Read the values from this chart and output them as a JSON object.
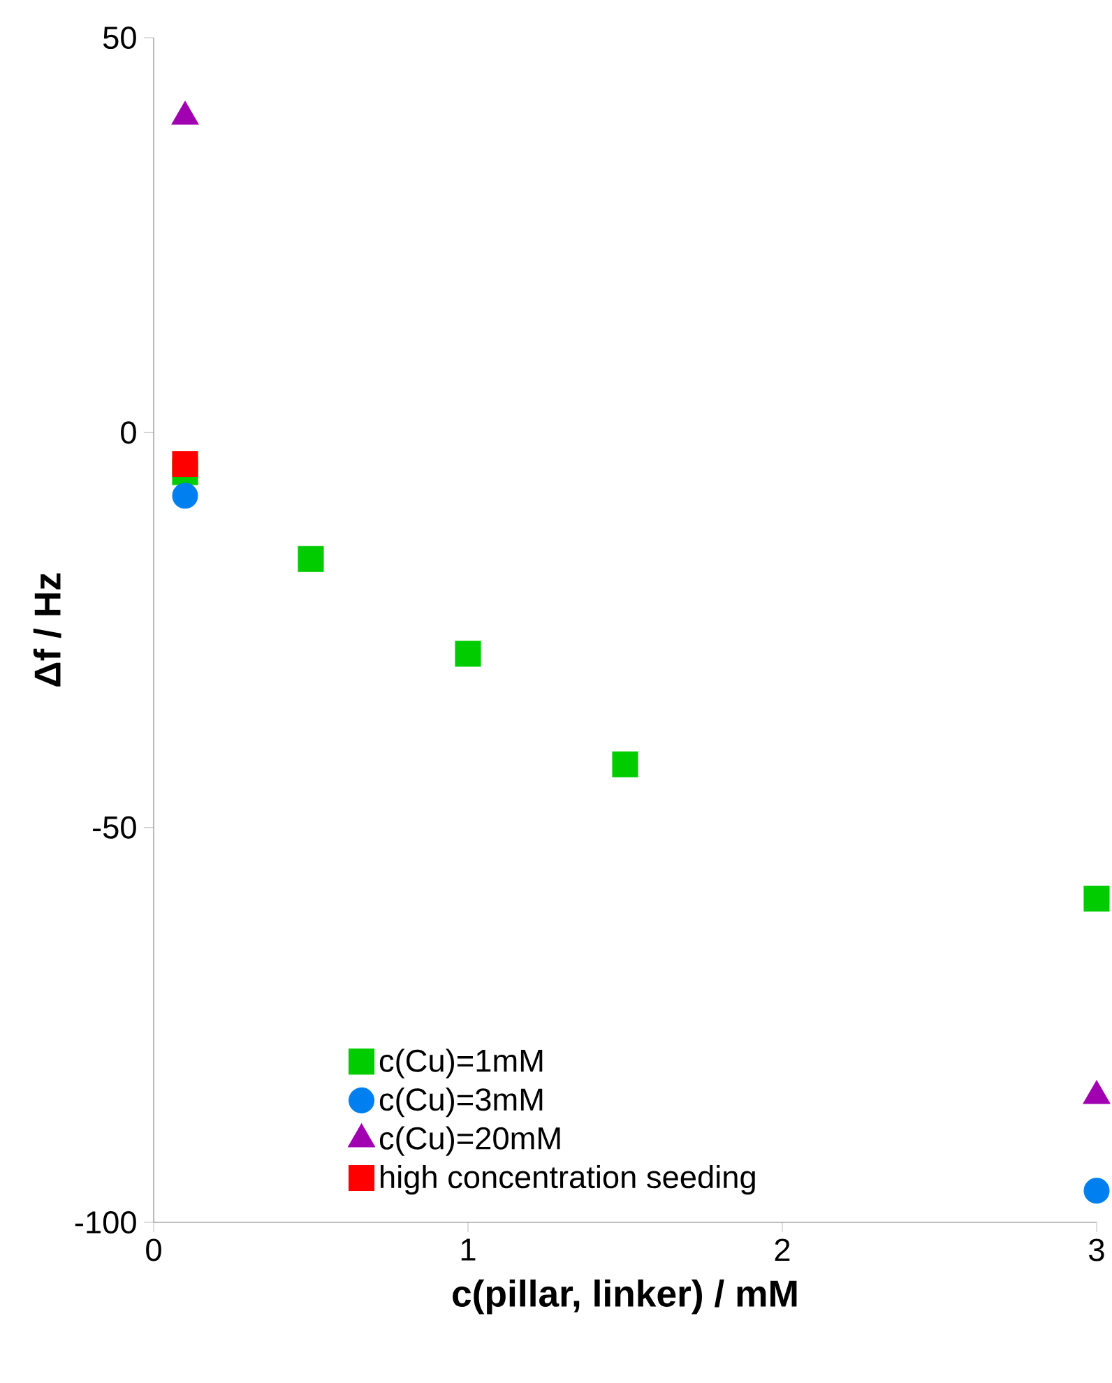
{
  "chart_data": {
    "type": "scatter",
    "xlabel": "c(pillar, linker) / mM",
    "ylabel": "Δf / Hz",
    "xlim": [
      0,
      3
    ],
    "xticks": [
      0,
      1,
      2,
      3
    ],
    "ylim": [
      -100,
      50
    ],
    "yticks": [
      -100,
      -50,
      0,
      50
    ],
    "grid": false,
    "legend": "bottom left",
    "series": [
      {
        "name": "c(Cu)=1mM",
        "color": "#00cc00",
        "marker": "square",
        "x": [
          0.1,
          0.5,
          1.0,
          1.5,
          3.0
        ],
        "values": [
          -5,
          -16,
          -28,
          -42,
          -59
        ]
      },
      {
        "name": "c(Cu)=3mM",
        "color": "#0080f0",
        "marker": "circle",
        "x": [
          0.1,
          3.0
        ],
        "values": [
          -8,
          -96
        ]
      },
      {
        "name": "c(Cu)=20mM",
        "color": "#a000b0",
        "marker": "triangle",
        "x": [
          0.1,
          3.0
        ],
        "values": [
          40,
          -84
        ]
      },
      {
        "name": "high concentration seeding",
        "color": "#ff0000",
        "marker": "square",
        "x": [
          0.1
        ],
        "values": [
          -4
        ]
      }
    ]
  }
}
